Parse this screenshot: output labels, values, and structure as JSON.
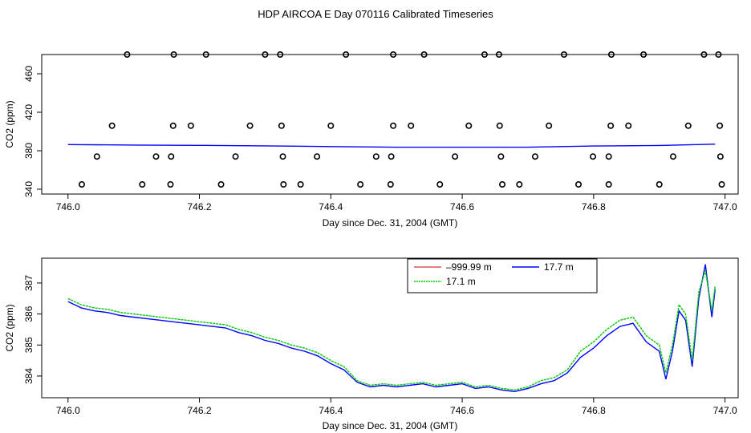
{
  "title": "HDP AIRCOA E  Day 070116  Calibrated Timeseries",
  "chart_data": [
    {
      "type": "scatter",
      "xlabel": "Day since Dec. 31, 2004 (GMT)",
      "ylabel": "CO2 (ppm)",
      "xlim": [
        745.96,
        747.02
      ],
      "ylim": [
        335,
        480
      ],
      "xticks": [
        "746.0",
        "746.2",
        "746.4",
        "746.6",
        "746.8",
        "747.0"
      ],
      "yticks": [
        "340",
        "380",
        "420",
        "460"
      ],
      "series": [
        {
          "style": "circles",
          "points": [
            {
              "x": 746.09,
              "y": 480
            },
            {
              "x": 746.161,
              "y": 480
            },
            {
              "x": 746.21,
              "y": 480
            },
            {
              "x": 746.3,
              "y": 480
            },
            {
              "x": 746.323,
              "y": 480
            },
            {
              "x": 746.423,
              "y": 480
            },
            {
              "x": 746.495,
              "y": 480
            },
            {
              "x": 746.542,
              "y": 480
            },
            {
              "x": 746.634,
              "y": 480
            },
            {
              "x": 746.656,
              "y": 480
            },
            {
              "x": 746.755,
              "y": 480
            },
            {
              "x": 746.827,
              "y": 480
            },
            {
              "x": 746.876,
              "y": 480
            },
            {
              "x": 746.968,
              "y": 480
            },
            {
              "x": 746.99,
              "y": 480
            },
            {
              "x": 746.067,
              "y": 406
            },
            {
              "x": 746.16,
              "y": 406
            },
            {
              "x": 746.187,
              "y": 406
            },
            {
              "x": 746.277,
              "y": 406
            },
            {
              "x": 746.325,
              "y": 406
            },
            {
              "x": 746.4,
              "y": 406
            },
            {
              "x": 746.495,
              "y": 406
            },
            {
              "x": 746.522,
              "y": 406
            },
            {
              "x": 746.61,
              "y": 406
            },
            {
              "x": 746.657,
              "y": 406
            },
            {
              "x": 746.732,
              "y": 406
            },
            {
              "x": 746.826,
              "y": 406
            },
            {
              "x": 746.853,
              "y": 406
            },
            {
              "x": 746.944,
              "y": 406
            },
            {
              "x": 746.992,
              "y": 406
            },
            {
              "x": 746.044,
              "y": 374
            },
            {
              "x": 746.134,
              "y": 374
            },
            {
              "x": 746.157,
              "y": 374
            },
            {
              "x": 746.255,
              "y": 374
            },
            {
              "x": 746.327,
              "y": 374
            },
            {
              "x": 746.379,
              "y": 374
            },
            {
              "x": 746.469,
              "y": 374
            },
            {
              "x": 746.492,
              "y": 374
            },
            {
              "x": 746.589,
              "y": 374
            },
            {
              "x": 746.659,
              "y": 374
            },
            {
              "x": 746.711,
              "y": 374
            },
            {
              "x": 746.799,
              "y": 374
            },
            {
              "x": 746.823,
              "y": 374
            },
            {
              "x": 746.921,
              "y": 374
            },
            {
              "x": 746.993,
              "y": 374
            },
            {
              "x": 746.021,
              "y": 345
            },
            {
              "x": 746.113,
              "y": 345
            },
            {
              "x": 746.156,
              "y": 345
            },
            {
              "x": 746.233,
              "y": 345
            },
            {
              "x": 746.328,
              "y": 345
            },
            {
              "x": 746.354,
              "y": 345
            },
            {
              "x": 746.445,
              "y": 345
            },
            {
              "x": 746.491,
              "y": 345
            },
            {
              "x": 746.566,
              "y": 345
            },
            {
              "x": 746.661,
              "y": 345
            },
            {
              "x": 746.687,
              "y": 345
            },
            {
              "x": 746.777,
              "y": 345
            },
            {
              "x": 746.823,
              "y": 345
            },
            {
              "x": 746.9,
              "y": 345
            },
            {
              "x": 746.995,
              "y": 345
            }
          ]
        },
        {
          "style": "line",
          "color": "#0000ff",
          "points": [
            {
              "x": 746.0,
              "y": 386.4
            },
            {
              "x": 746.1,
              "y": 385.9
            },
            {
              "x": 746.2,
              "y": 385.6
            },
            {
              "x": 746.3,
              "y": 385.1
            },
            {
              "x": 746.4,
              "y": 384.3
            },
            {
              "x": 746.5,
              "y": 383.7
            },
            {
              "x": 746.6,
              "y": 383.7
            },
            {
              "x": 746.7,
              "y": 383.7
            },
            {
              "x": 746.8,
              "y": 384.9
            },
            {
              "x": 746.9,
              "y": 385.5
            },
            {
              "x": 746.985,
              "y": 386.8
            }
          ]
        }
      ]
    },
    {
      "type": "line",
      "xlabel": "Day since Dec. 31, 2004 (GMT)",
      "ylabel": "CO2 (ppm)",
      "xlim": [
        745.96,
        747.02
      ],
      "ylim": [
        383.3,
        387.8
      ],
      "xticks": [
        "746.0",
        "746.2",
        "746.4",
        "746.6",
        "746.8",
        "747.0"
      ],
      "yticks": [
        "384",
        "385",
        "386",
        "387"
      ],
      "legend": "top-right",
      "series": [
        {
          "name": "–999.99 m",
          "color": "#cc0000",
          "values": []
        },
        {
          "name": "17.7 m",
          "color": "#0000ff",
          "points": [
            {
              "x": 746.0,
              "y": 386.4
            },
            {
              "x": 746.02,
              "y": 386.2
            },
            {
              "x": 746.04,
              "y": 386.1
            },
            {
              "x": 746.06,
              "y": 386.05
            },
            {
              "x": 746.08,
              "y": 385.95
            },
            {
              "x": 746.1,
              "y": 385.9
            },
            {
              "x": 746.12,
              "y": 385.85
            },
            {
              "x": 746.14,
              "y": 385.8
            },
            {
              "x": 746.16,
              "y": 385.75
            },
            {
              "x": 746.18,
              "y": 385.7
            },
            {
              "x": 746.2,
              "y": 385.65
            },
            {
              "x": 746.22,
              "y": 385.6
            },
            {
              "x": 746.24,
              "y": 385.55
            },
            {
              "x": 746.26,
              "y": 385.4
            },
            {
              "x": 746.28,
              "y": 385.3
            },
            {
              "x": 746.3,
              "y": 385.15
            },
            {
              "x": 746.32,
              "y": 385.05
            },
            {
              "x": 746.34,
              "y": 384.9
            },
            {
              "x": 746.36,
              "y": 384.8
            },
            {
              "x": 746.38,
              "y": 384.65
            },
            {
              "x": 746.4,
              "y": 384.4
            },
            {
              "x": 746.42,
              "y": 384.2
            },
            {
              "x": 746.44,
              "y": 383.8
            },
            {
              "x": 746.46,
              "y": 383.65
            },
            {
              "x": 746.48,
              "y": 383.7
            },
            {
              "x": 746.5,
              "y": 383.65
            },
            {
              "x": 746.52,
              "y": 383.7
            },
            {
              "x": 746.54,
              "y": 383.75
            },
            {
              "x": 746.56,
              "y": 383.65
            },
            {
              "x": 746.58,
              "y": 383.7
            },
            {
              "x": 746.6,
              "y": 383.75
            },
            {
              "x": 746.62,
              "y": 383.6
            },
            {
              "x": 746.64,
              "y": 383.65
            },
            {
              "x": 746.66,
              "y": 383.55
            },
            {
              "x": 746.68,
              "y": 383.5
            },
            {
              "x": 746.7,
              "y": 383.6
            },
            {
              "x": 746.72,
              "y": 383.75
            },
            {
              "x": 746.74,
              "y": 383.85
            },
            {
              "x": 746.76,
              "y": 384.1
            },
            {
              "x": 746.78,
              "y": 384.6
            },
            {
              "x": 746.8,
              "y": 384.9
            },
            {
              "x": 746.82,
              "y": 385.3
            },
            {
              "x": 746.84,
              "y": 385.6
            },
            {
              "x": 746.86,
              "y": 385.7
            },
            {
              "x": 746.88,
              "y": 385.1
            },
            {
              "x": 746.9,
              "y": 384.8
            },
            {
              "x": 746.91,
              "y": 383.9
            },
            {
              "x": 746.92,
              "y": 384.8
            },
            {
              "x": 746.93,
              "y": 386.1
            },
            {
              "x": 746.94,
              "y": 385.8
            },
            {
              "x": 746.95,
              "y": 384.3
            },
            {
              "x": 746.96,
              "y": 386.5
            },
            {
              "x": 746.97,
              "y": 387.6
            },
            {
              "x": 746.98,
              "y": 385.9
            },
            {
              "x": 746.985,
              "y": 386.8
            }
          ]
        },
        {
          "name": "17.1 m",
          "color": "#00cc00",
          "points": [
            {
              "x": 746.0,
              "y": 386.5
            },
            {
              "x": 746.02,
              "y": 386.3
            },
            {
              "x": 746.04,
              "y": 386.2
            },
            {
              "x": 746.06,
              "y": 386.15
            },
            {
              "x": 746.08,
              "y": 386.05
            },
            {
              "x": 746.1,
              "y": 386.0
            },
            {
              "x": 746.12,
              "y": 385.95
            },
            {
              "x": 746.14,
              "y": 385.9
            },
            {
              "x": 746.16,
              "y": 385.85
            },
            {
              "x": 746.18,
              "y": 385.8
            },
            {
              "x": 746.2,
              "y": 385.75
            },
            {
              "x": 746.22,
              "y": 385.7
            },
            {
              "x": 746.24,
              "y": 385.65
            },
            {
              "x": 746.26,
              "y": 385.5
            },
            {
              "x": 746.28,
              "y": 385.4
            },
            {
              "x": 746.3,
              "y": 385.25
            },
            {
              "x": 746.32,
              "y": 385.15
            },
            {
              "x": 746.34,
              "y": 385.0
            },
            {
              "x": 746.36,
              "y": 384.9
            },
            {
              "x": 746.38,
              "y": 384.75
            },
            {
              "x": 746.4,
              "y": 384.5
            },
            {
              "x": 746.42,
              "y": 384.3
            },
            {
              "x": 746.44,
              "y": 383.85
            },
            {
              "x": 746.46,
              "y": 383.7
            },
            {
              "x": 746.48,
              "y": 383.75
            },
            {
              "x": 746.5,
              "y": 383.7
            },
            {
              "x": 746.52,
              "y": 383.75
            },
            {
              "x": 746.54,
              "y": 383.8
            },
            {
              "x": 746.56,
              "y": 383.7
            },
            {
              "x": 746.58,
              "y": 383.75
            },
            {
              "x": 746.6,
              "y": 383.8
            },
            {
              "x": 746.62,
              "y": 383.65
            },
            {
              "x": 746.64,
              "y": 383.7
            },
            {
              "x": 746.66,
              "y": 383.6
            },
            {
              "x": 746.68,
              "y": 383.55
            },
            {
              "x": 746.7,
              "y": 383.65
            },
            {
              "x": 746.72,
              "y": 383.85
            },
            {
              "x": 746.74,
              "y": 383.95
            },
            {
              "x": 746.76,
              "y": 384.2
            },
            {
              "x": 746.78,
              "y": 384.8
            },
            {
              "x": 746.8,
              "y": 385.1
            },
            {
              "x": 746.82,
              "y": 385.5
            },
            {
              "x": 746.84,
              "y": 385.8
            },
            {
              "x": 746.86,
              "y": 385.9
            },
            {
              "x": 746.88,
              "y": 385.3
            },
            {
              "x": 746.9,
              "y": 385.0
            },
            {
              "x": 746.91,
              "y": 384.1
            },
            {
              "x": 746.92,
              "y": 385.0
            },
            {
              "x": 746.93,
              "y": 386.3
            },
            {
              "x": 746.94,
              "y": 386.0
            },
            {
              "x": 746.95,
              "y": 384.5
            },
            {
              "x": 746.96,
              "y": 386.7
            },
            {
              "x": 746.97,
              "y": 387.4
            },
            {
              "x": 746.98,
              "y": 386.1
            },
            {
              "x": 746.985,
              "y": 386.9
            }
          ]
        }
      ]
    }
  ]
}
